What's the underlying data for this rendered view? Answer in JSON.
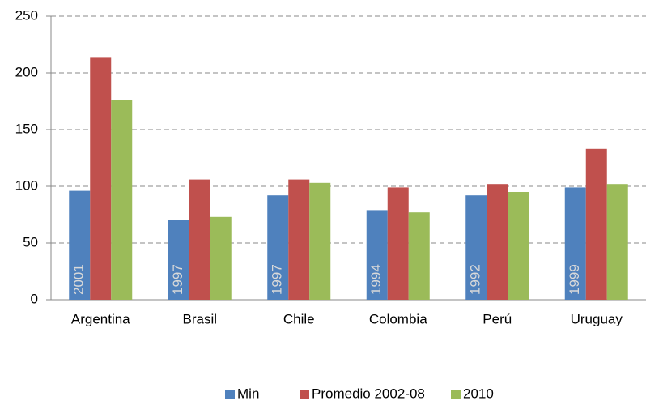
{
  "chart_data": {
    "type": "bar",
    "categories": [
      "Argentina",
      "Brasil",
      "Chile",
      "Colombia",
      "Perú",
      "Uruguay"
    ],
    "series": [
      {
        "name": "Min",
        "color": "#4f81bd",
        "values": [
          96,
          70,
          92,
          79,
          92,
          99
        ],
        "labels": [
          "2001",
          "1997",
          "1997",
          "1994",
          "1992",
          "1999"
        ]
      },
      {
        "name": "Promedio 2002-08",
        "color": "#c0504d",
        "values": [
          214,
          106,
          106,
          99,
          102,
          133
        ]
      },
      {
        "name": "2010",
        "color": "#9bbb59",
        "values": [
          176,
          73,
          103,
          77,
          95,
          102
        ]
      }
    ],
    "ylim": [
      0,
      250
    ],
    "yticks": [
      0,
      50,
      100,
      150,
      200,
      250
    ],
    "grid": true,
    "legend": "bottom"
  }
}
